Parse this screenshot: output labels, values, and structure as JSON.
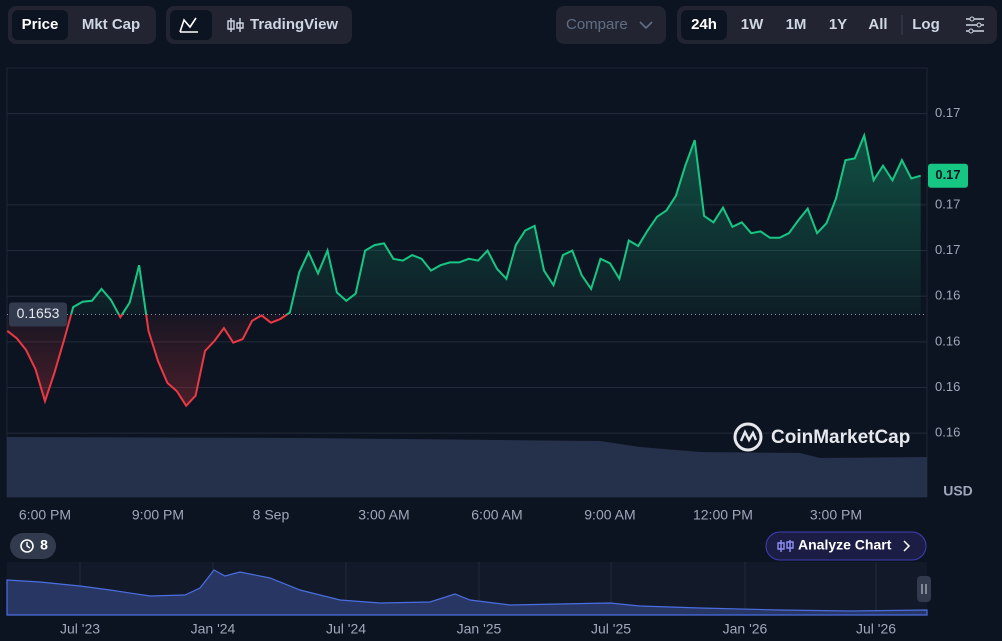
{
  "toolbar": {
    "price": "Price",
    "mkt_cap": "Mkt Cap",
    "tradingview": "TradingView",
    "compare": "Compare",
    "ranges": [
      "24h",
      "1W",
      "1M",
      "1Y",
      "All"
    ],
    "log": "Log"
  },
  "chart_data": {
    "type": "line",
    "categories": [
      "",
      "",
      "",
      "",
      "6:00 PM",
      "",
      "",
      "",
      "",
      "",
      "",
      "",
      "",
      "",
      "",
      "",
      "9:00 PM",
      "",
      "",
      "",
      "",
      "",
      "",
      "",
      "",
      "",
      "",
      "",
      "8 Sep",
      "",
      "",
      "",
      "",
      "",
      "",
      "",
      "",
      "",
      "",
      "",
      "3:00 AM",
      "",
      "",
      "",
      "",
      "",
      "",
      "",
      "",
      "",
      "",
      "",
      "6:00 AM",
      "",
      "",
      "",
      "",
      "",
      "",
      "",
      "",
      "",
      "",
      "",
      "9:00 AM",
      "",
      "",
      "",
      "",
      "",
      "",
      "",
      "",
      "",
      "",
      "",
      "12:00 PM",
      "",
      "",
      "",
      "",
      "",
      "",
      "",
      "",
      "",
      "",
      "",
      "3:00 PM",
      "",
      "",
      "",
      "",
      "",
      "",
      "",
      "",
      ""
    ],
    "series": [
      {
        "name": "Price",
        "color": "#16c784",
        "values": [
          0.16512,
          0.16504,
          0.16491,
          0.1647,
          0.16435,
          0.16466,
          0.16501,
          0.16538,
          0.16544,
          0.16545,
          0.16558,
          0.16546,
          0.16527,
          0.16543,
          0.16584,
          0.16512,
          0.16479,
          0.16455,
          0.16446,
          0.1643,
          0.16441,
          0.1649,
          0.16501,
          0.16515,
          0.16499,
          0.16503,
          0.16523,
          0.16529,
          0.16521,
          0.16525,
          0.16532,
          0.16576,
          0.16598,
          0.16575,
          0.166,
          0.16554,
          0.16545,
          0.16553,
          0.166,
          0.16606,
          0.16608,
          0.16591,
          0.16589,
          0.16595,
          0.16591,
          0.16578,
          0.16584,
          0.16587,
          0.16587,
          0.16591,
          0.16589,
          0.166,
          0.1658,
          0.16569,
          0.16606,
          0.16622,
          0.16627,
          0.16578,
          0.16562,
          0.16595,
          0.166,
          0.16573,
          0.16558,
          0.16591,
          0.16586,
          0.16569,
          0.16611,
          0.16605,
          0.16622,
          0.16637,
          0.16644,
          0.1666,
          0.16693,
          0.16721,
          0.16638,
          0.16631,
          0.16647,
          0.16626,
          0.16631,
          0.16619,
          0.16621,
          0.16614,
          0.16614,
          0.16619,
          0.16633,
          0.16646,
          0.16619,
          0.1663,
          0.16657,
          0.16699,
          0.16701,
          0.16726,
          0.16677,
          0.16693,
          0.16677,
          0.16699,
          0.16679,
          0.16682
        ]
      }
    ],
    "down_color": "#ea3943",
    "baseline": 0.1653,
    "last_price_label": "0.17",
    "ylim": [
      0.1633,
      0.168
    ],
    "yticks": [
      {
        "value": 0.164,
        "label": "0.16"
      },
      {
        "value": 0.1645,
        "label": "0.16"
      },
      {
        "value": 0.165,
        "label": "0.16"
      },
      {
        "value": 0.1655,
        "label": "0.16"
      },
      {
        "value": 0.166,
        "label": "0.17"
      },
      {
        "value": 0.1665,
        "label": "0.17"
      },
      {
        "value": 0.1675,
        "label": "0.17"
      }
    ],
    "grid": true,
    "y_unit": "USD",
    "watermark": "CoinMarketCap",
    "events_count": "8",
    "analyze": "Analyze Chart",
    "navigator_labels": [
      "Jul '23",
      "Jan '24",
      "Jul '24",
      "Jan '25",
      "Jul '25",
      "Jan '26",
      "Jul '26"
    ]
  }
}
